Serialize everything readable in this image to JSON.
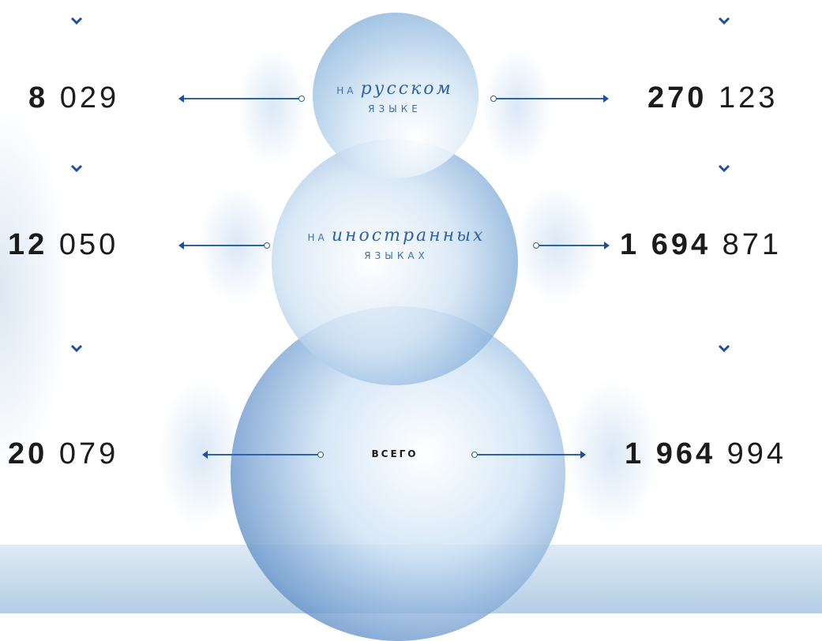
{
  "colors": {
    "accent": "#2f62a8",
    "arrow": "#1f4f9b",
    "number_text": "#1b1b1b"
  },
  "icons": {
    "chevron": "chevron-down-icon",
    "arrow_left": "arrow-left-icon",
    "arrow_right": "arrow-right-icon"
  },
  "rows": [
    {
      "label_prefix": "НА",
      "label_word": "русском",
      "label_sub": "ЯЗЫКЕ",
      "left": {
        "bold": "8",
        "light": "029"
      },
      "right": {
        "bold": "270",
        "light": "123"
      }
    },
    {
      "label_prefix": "НА",
      "label_word": "иностранных",
      "label_sub": "ЯЗЫКАХ",
      "left": {
        "bold": "12",
        "light": "050"
      },
      "right": {
        "bold": "1 694",
        "light": "871"
      }
    },
    {
      "label_total": "ВСЕГО",
      "left": {
        "bold": "20",
        "light": "079"
      },
      "right": {
        "bold": "1 964",
        "light": "994"
      }
    }
  ]
}
